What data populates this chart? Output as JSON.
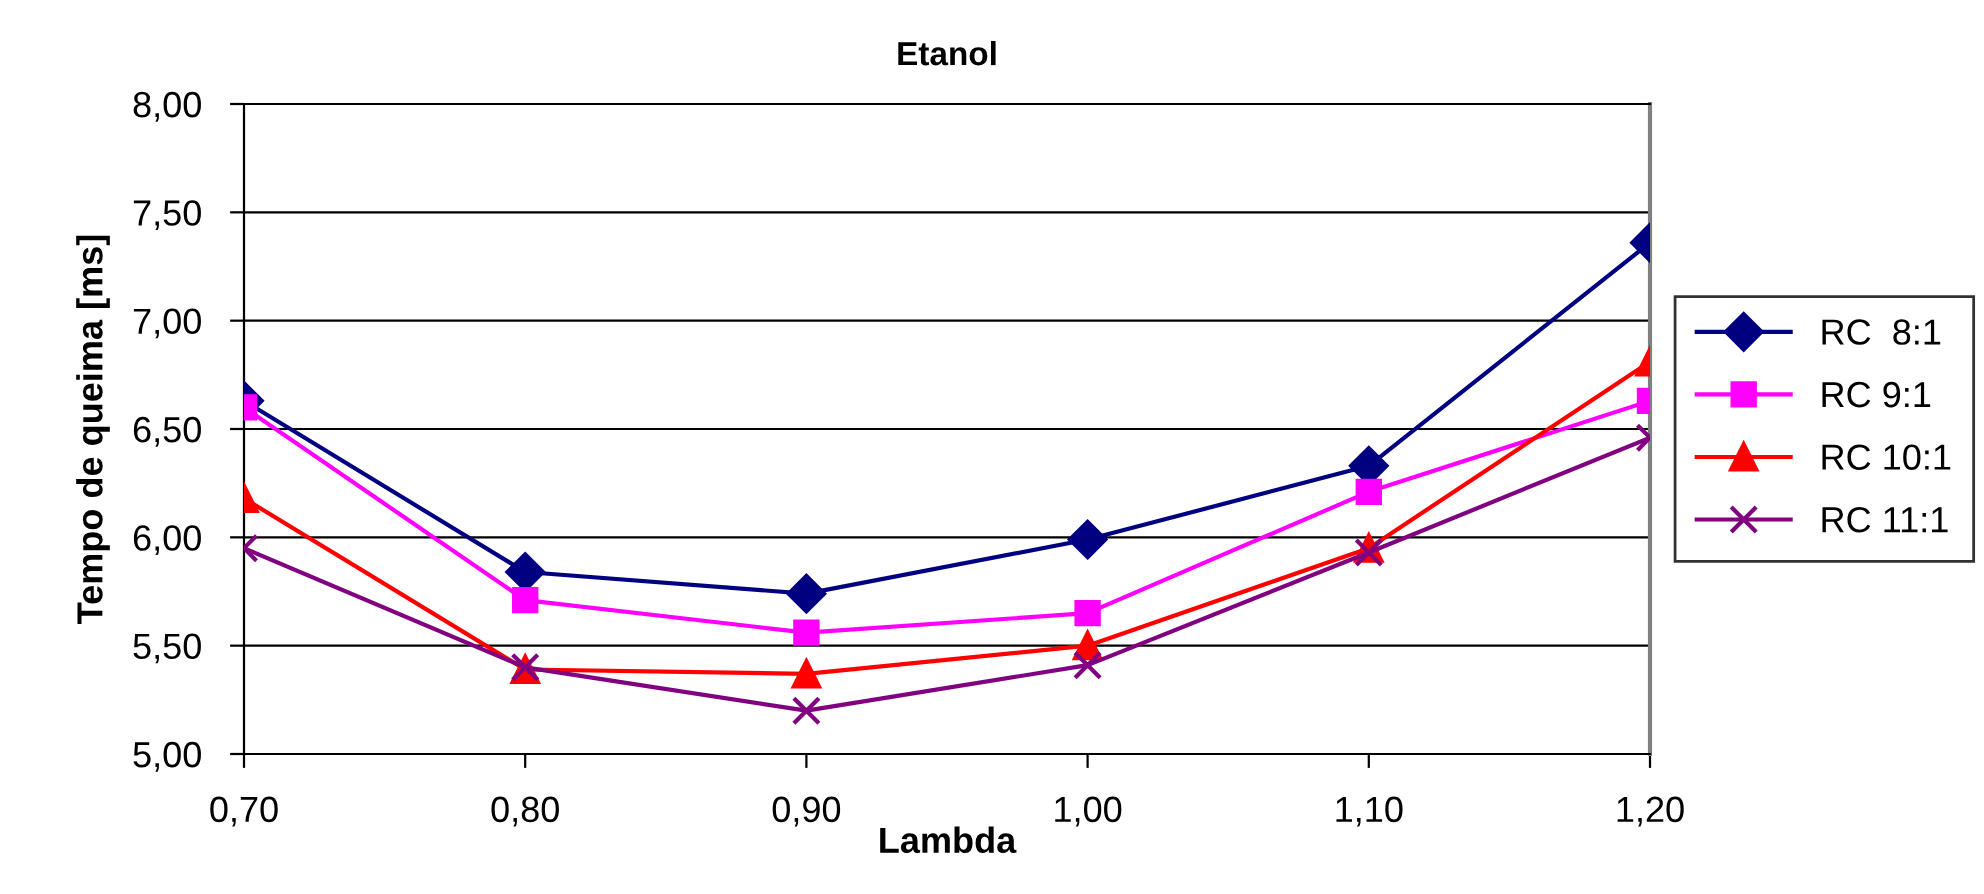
{
  "chart_data": {
    "type": "line",
    "title": "Etanol",
    "xlabel": "Lambda",
    "ylabel": "Tempo de queima [ms]",
    "x": [
      0.7,
      0.8,
      0.9,
      1.0,
      1.1,
      1.2
    ],
    "xlim": [
      0.7,
      1.2
    ],
    "xticks": [
      {
        "value": 0.7,
        "label": "0,70"
      },
      {
        "value": 0.8,
        "label": "0,80"
      },
      {
        "value": 0.9,
        "label": "0,90"
      },
      {
        "value": 1.0,
        "label": "1,00"
      },
      {
        "value": 1.1,
        "label": "1,10"
      },
      {
        "value": 1.2,
        "label": "1,20"
      }
    ],
    "ylim": [
      5,
      8
    ],
    "yticks": [
      {
        "value": 5,
        "label": "5,00"
      },
      {
        "value": 5.5,
        "label": "5,50"
      },
      {
        "value": 6,
        "label": "6,00"
      },
      {
        "value": 6.5,
        "label": "6,50"
      },
      {
        "value": 7,
        "label": "7,00"
      },
      {
        "value": 7.5,
        "label": "7,50"
      },
      {
        "value": 8,
        "label": "8,00"
      }
    ],
    "grid": "y",
    "legend": "right",
    "series": [
      {
        "name": "RC  8:1",
        "color": "#000080",
        "marker": "diamond",
        "values": [
          6.63,
          5.84,
          5.74,
          5.99,
          6.33,
          7.36
        ]
      },
      {
        "name": "RC 9:1",
        "color": "#ff00ff",
        "marker": "square",
        "values": [
          6.6,
          5.71,
          5.56,
          5.65,
          6.21,
          6.63
        ]
      },
      {
        "name": "RC 10:1",
        "color": "#ff0000",
        "marker": "triangle",
        "values": [
          6.18,
          5.39,
          5.37,
          5.5,
          5.95,
          6.81
        ]
      },
      {
        "name": "RC 11:1",
        "color": "#800080",
        "marker": "cross",
        "values": [
          5.95,
          5.4,
          5.2,
          5.41,
          5.93,
          6.46
        ]
      }
    ]
  }
}
